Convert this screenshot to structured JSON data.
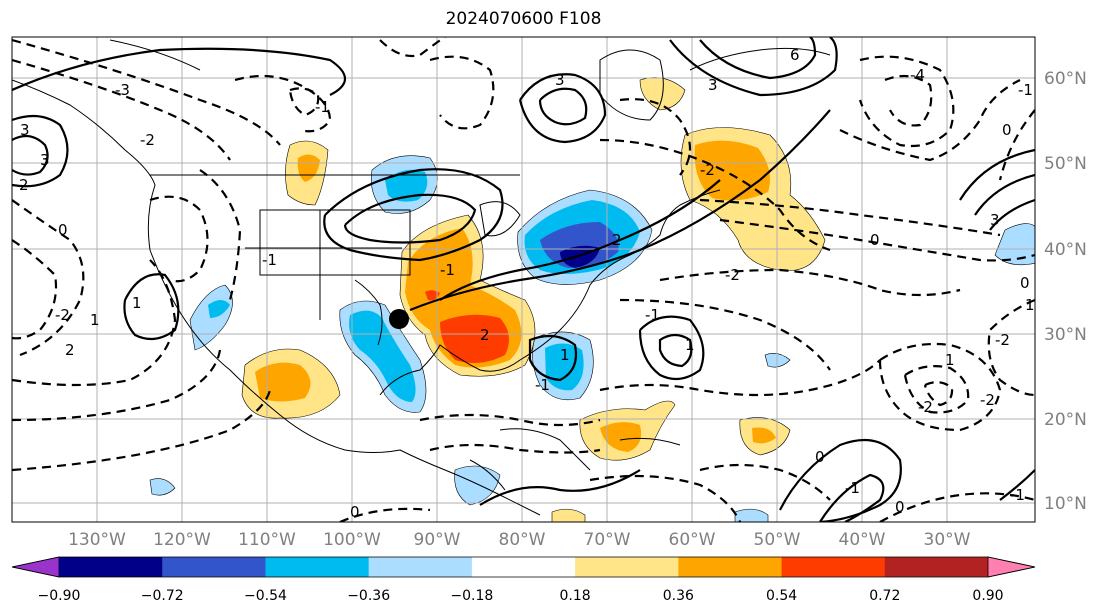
{
  "title": "2024070600 F108",
  "latitude_labels": [
    "60°N",
    "50°N",
    "40°N",
    "30°N",
    "20°N",
    "10°N"
  ],
  "longitude_labels": [
    "130°W",
    "120°W",
    "110°W",
    "100°W",
    "90°W",
    "80°W",
    "70°W",
    "60°W",
    "50°W",
    "40°W",
    "30°W"
  ],
  "colorbar": {
    "extend": "both",
    "ticks": [
      "−0.90",
      "−0.72",
      "−0.54",
      "−0.36",
      "−0.18",
      "0.18",
      "0.36",
      "0.54",
      "0.72",
      "0.90"
    ],
    "colors": {
      "under": "#9933cc",
      "bins": [
        "#000088",
        "#3355cc",
        "#00bbf0",
        "#aaddff",
        "#ffffff",
        "#ffe588",
        "#ffa500",
        "#ff3c00",
        "#b22222"
      ],
      "over": "#ff80b0"
    }
  },
  "marker": {
    "label": "black circle marker",
    "color": "#000000"
  },
  "contour_line_labels": [
    "3",
    "6",
    "3",
    "3",
    "-1",
    "-2",
    "-1",
    "-3",
    "2",
    "3",
    "1",
    "0",
    "1",
    "-1",
    "-2",
    "2",
    "0",
    "-1",
    "0",
    "-2",
    "1",
    "2",
    "1",
    "-1",
    "-2",
    "-4",
    "0",
    "-1",
    "0",
    "-2",
    "2",
    "3",
    "1",
    "-1",
    "-2",
    "0",
    "-1",
    "0",
    "1",
    "-2"
  ],
  "gridline_color": "#b0b0b0",
  "coastline_color": "#000000"
}
